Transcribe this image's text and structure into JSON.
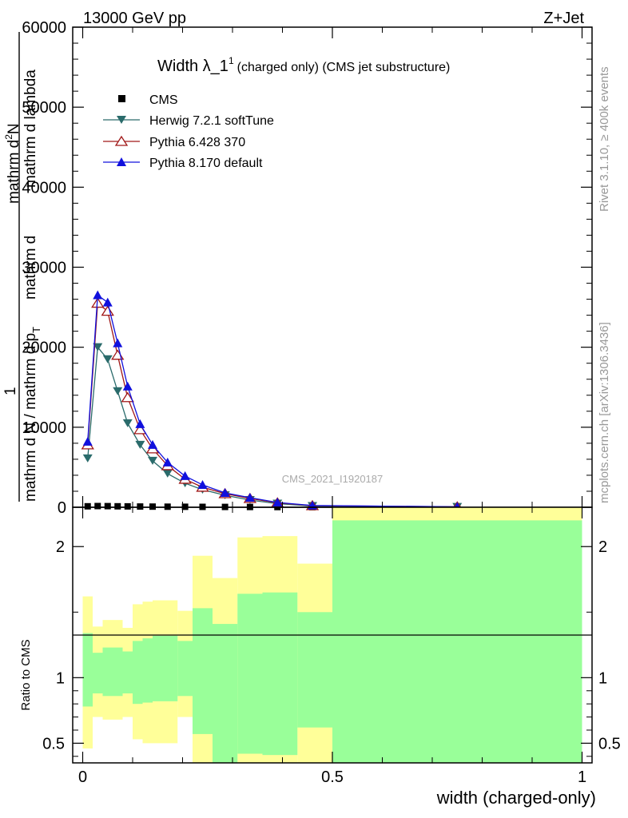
{
  "header": {
    "left": "13000 GeV pp",
    "right": "Z+Jet"
  },
  "side_labels": {
    "rivet": "Rivet 3.1.10, ≥ 400k events",
    "mcplots": "mcplots.cern.ch [arXiv:1306.3436]"
  },
  "chart_data": [
    {
      "type": "line",
      "title": {
        "main": "Width λ_1",
        "superscript": "1",
        "rest": "(charged only) (CMS jet substructure)"
      },
      "watermark": "CMS_2021_I1920187",
      "ylabel": {
        "one": "1",
        "lower": "mathrm d N / mathrm d p",
        "sub": "T",
        "upper": "mathrm d",
        "upper2": "mathrm d lambda",
        "frac_num": "mathrm d",
        "dN": "mathrm d",
        "N": "N",
        "sup2": "2"
      },
      "xlim": [
        -0.02,
        1.02
      ],
      "ylim": [
        0,
        60000
      ],
      "yticks": [
        0,
        10000,
        20000,
        30000,
        40000,
        50000,
        60000
      ],
      "ytick_labels": [
        "0",
        "10000",
        "20000",
        "30000",
        "40000",
        "50000",
        "60000"
      ],
      "legend": [
        "CMS",
        "Herwig 7.2.1 softTune",
        "Pythia 6.428 370",
        "Pythia 8.170 default"
      ],
      "legend_position": "top-left",
      "colors": {
        "cms": "#000000",
        "herwig": "#2a6b6b",
        "pythia6": "#a01818",
        "pythia8": "#1010dd"
      },
      "x": [
        0.01,
        0.03,
        0.05,
        0.07,
        0.09,
        0.115,
        0.14,
        0.17,
        0.205,
        0.24,
        0.285,
        0.335,
        0.39,
        0.46,
        0.75
      ],
      "series": [
        {
          "name": "CMS",
          "values": [
            120,
            150,
            140,
            120,
            110,
            90,
            80,
            70,
            60,
            50,
            40,
            35,
            25,
            15,
            5
          ]
        },
        {
          "name": "Herwig 7.2.1 softTune",
          "values": [
            6100,
            20000,
            18500,
            14500,
            10500,
            7800,
            5800,
            4200,
            3000,
            2200,
            1500,
            900,
            450,
            150,
            40
          ]
        },
        {
          "name": "Pythia 6.428 370",
          "values": [
            7800,
            25500,
            24500,
            19000,
            13700,
            9700,
            7300,
            5200,
            3500,
            2500,
            1700,
            1100,
            550,
            200,
            60
          ]
        },
        {
          "name": "Pythia 8.170 default",
          "values": [
            8200,
            26500,
            25600,
            20500,
            15100,
            10400,
            7800,
            5600,
            3900,
            2800,
            1800,
            1200,
            600,
            220,
            60
          ]
        }
      ]
    },
    {
      "type": "area",
      "ylabel": "Ratio to CMS",
      "xlabel": "width (charged-only)",
      "xlim": [
        -0.02,
        1.02
      ],
      "ylim": [
        0.35,
        2.3
      ],
      "xticks": [
        0,
        0.5,
        1
      ],
      "xtick_labels": [
        "0",
        "0.5",
        "1"
      ],
      "yticks": [
        0.5,
        1,
        2
      ],
      "ytick_labels": [
        "0.5",
        "1",
        "2"
      ],
      "colors": {
        "yellow": "#ffff99",
        "green": "#99ff99"
      },
      "bins": [
        {
          "lo": 0.0,
          "hi": 0.02,
          "yellow": [
            0.46,
            1.62
          ],
          "green": [
            0.78,
            1.34
          ]
        },
        {
          "lo": 0.02,
          "hi": 0.04,
          "yellow": [
            0.7,
            1.39
          ],
          "green": [
            0.88,
            1.19
          ]
        },
        {
          "lo": 0.04,
          "hi": 0.08,
          "yellow": [
            0.68,
            1.44
          ],
          "green": [
            0.86,
            1.23
          ]
        },
        {
          "lo": 0.08,
          "hi": 0.1,
          "yellow": [
            0.7,
            1.38
          ],
          "green": [
            0.88,
            1.2
          ]
        },
        {
          "lo": 0.1,
          "hi": 0.12,
          "yellow": [
            0.53,
            1.56
          ],
          "green": [
            0.8,
            1.28
          ]
        },
        {
          "lo": 0.12,
          "hi": 0.14,
          "yellow": [
            0.5,
            1.58
          ],
          "green": [
            0.81,
            1.3
          ]
        },
        {
          "lo": 0.14,
          "hi": 0.19,
          "yellow": [
            0.5,
            1.59
          ],
          "green": [
            0.82,
            1.32
          ]
        },
        {
          "lo": 0.19,
          "hi": 0.22,
          "yellow": [
            0.7,
            1.51
          ],
          "green": [
            0.86,
            1.28
          ]
        },
        {
          "lo": 0.22,
          "hi": 0.26,
          "yellow": [
            0.31,
            1.93
          ],
          "green": [
            0.57,
            1.53
          ]
        },
        {
          "lo": 0.26,
          "hi": 0.31,
          "yellow": [
            0.3,
            1.76
          ],
          "green": [
            0.35,
            1.41
          ]
        },
        {
          "lo": 0.31,
          "hi": 0.36,
          "yellow": [
            0.32,
            2.07
          ],
          "green": [
            0.42,
            1.64
          ]
        },
        {
          "lo": 0.36,
          "hi": 0.43,
          "yellow": [
            0.32,
            2.08
          ],
          "green": [
            0.41,
            1.65
          ]
        },
        {
          "lo": 0.43,
          "hi": 0.5,
          "yellow": [
            0.34,
            1.87
          ],
          "green": [
            0.62,
            1.5
          ]
        },
        {
          "lo": 0.5,
          "hi": 1.0,
          "yellow": [
            0.34,
            2.3
          ],
          "green": [
            0.34,
            2.2
          ]
        }
      ]
    }
  ]
}
